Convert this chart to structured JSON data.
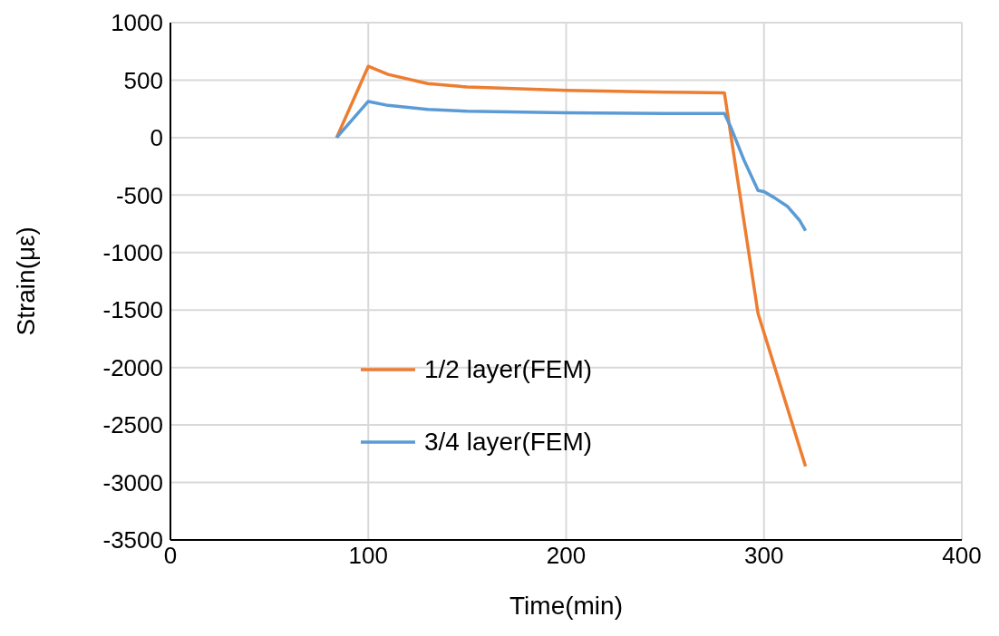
{
  "chart_data": {
    "type": "line",
    "xlabel": "Time(min)",
    "ylabel": "Strain(με)",
    "xlim": [
      0,
      400
    ],
    "xticks": [
      0,
      100,
      200,
      300,
      400
    ],
    "ylim": [
      -3500,
      1000
    ],
    "yticks": [
      -3500,
      -3000,
      -2500,
      -2000,
      -1500,
      -1000,
      -500,
      0,
      500,
      1000
    ],
    "grid": true,
    "legend": "bottom left",
    "marker": "none",
    "line_style": "solid",
    "series": [
      {
        "name": "1/2 layer(FEM)",
        "color": "#ed7d31",
        "x": [
          84,
          100,
          110,
          130,
          150,
          200,
          250,
          280,
          297,
          321
        ],
        "values": [
          0,
          620,
          550,
          470,
          440,
          410,
          395,
          390,
          -1530,
          -2860
        ]
      },
      {
        "name": "3/4 layer(FEM)",
        "color": "#5b9bd5",
        "x": [
          84,
          100,
          110,
          130,
          150,
          200,
          250,
          280,
          283,
          290,
          297,
          300,
          305,
          312,
          318,
          321
        ],
        "values": [
          0,
          315,
          280,
          245,
          230,
          215,
          210,
          210,
          100,
          -200,
          -460,
          -470,
          -520,
          -600,
          -720,
          -810
        ]
      }
    ]
  }
}
